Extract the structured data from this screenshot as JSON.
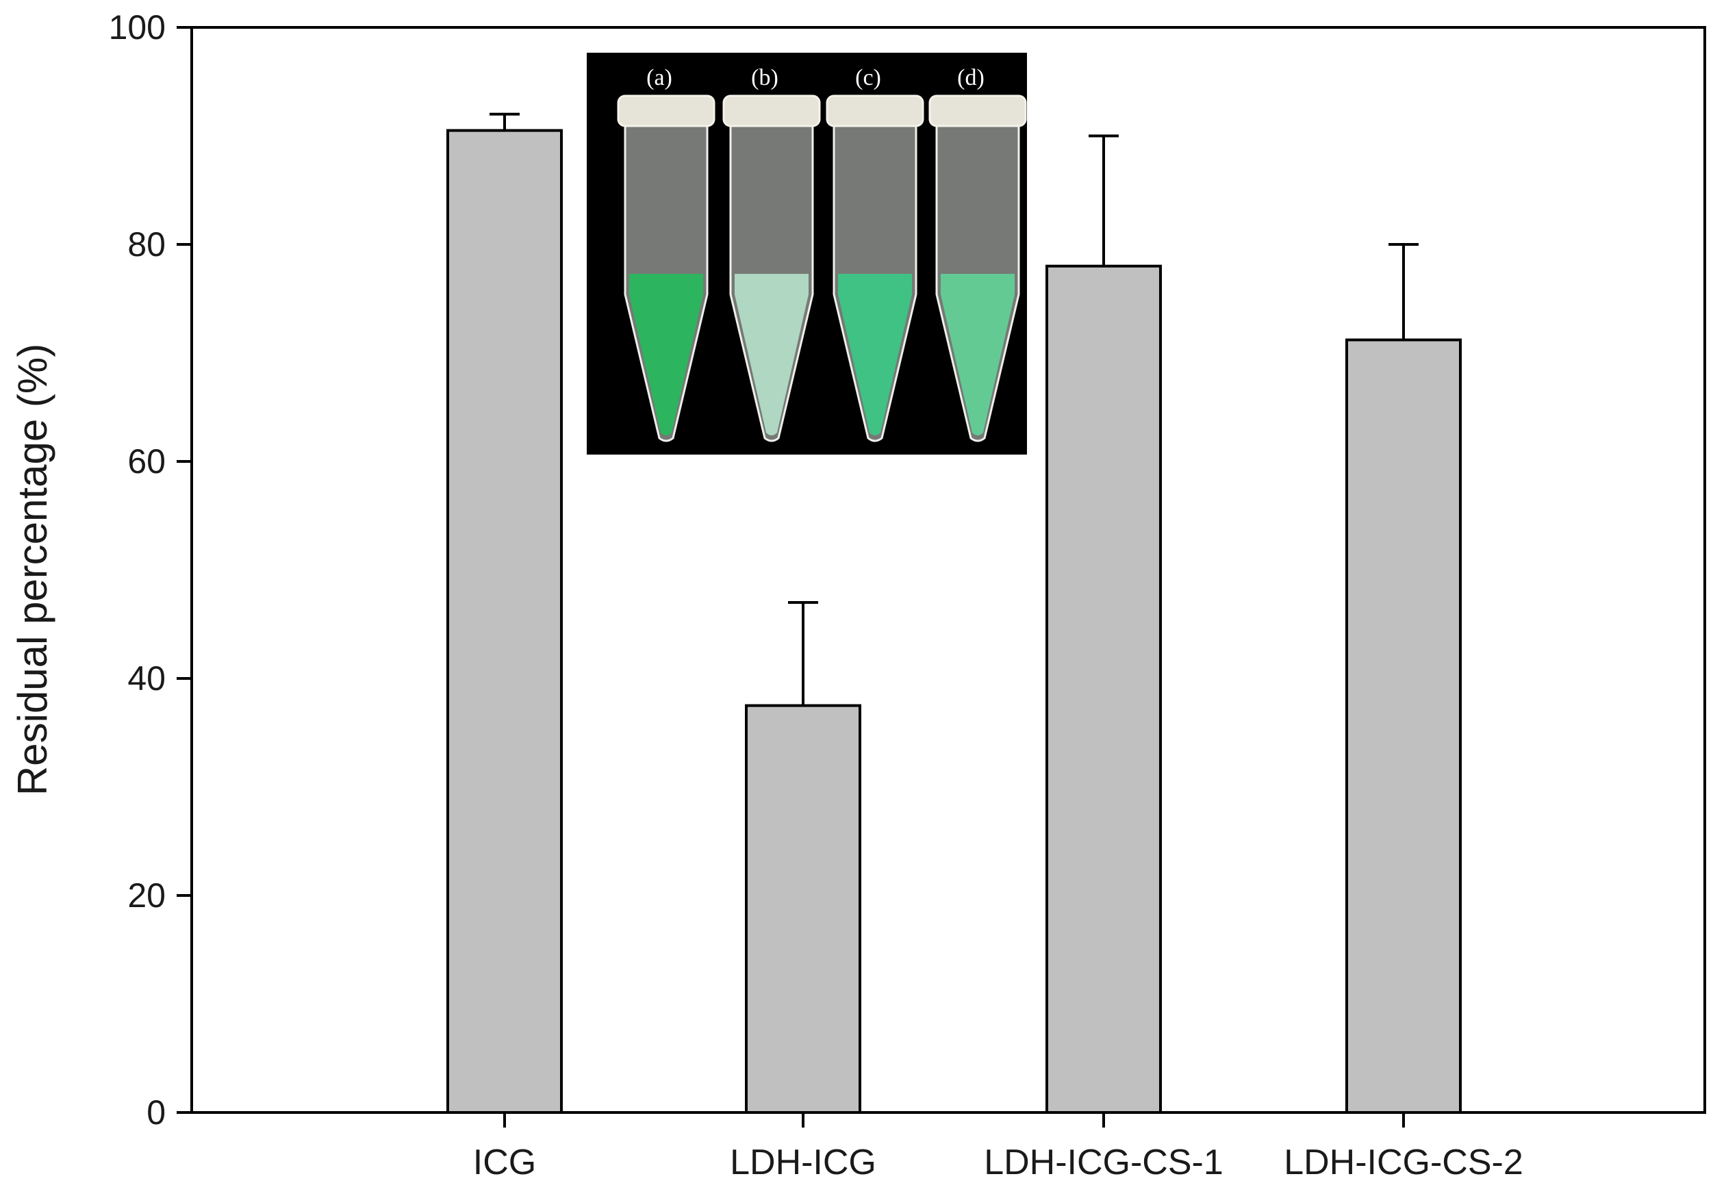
{
  "chart_data": {
    "type": "bar",
    "categories": [
      "ICG",
      "LDH-ICG",
      "LDH-ICG-CS-1",
      "LDH-ICG-CS-2"
    ],
    "values": [
      90.5,
      37.5,
      78.0,
      71.2
    ],
    "errors": [
      1.5,
      9.5,
      12.0,
      8.8
    ],
    "title": "",
    "xlabel": "",
    "ylabel": "Residual percentage (%)",
    "ylim": [
      0,
      100
    ],
    "yticks": [
      0,
      20,
      40,
      60,
      80,
      100
    ],
    "grid": false,
    "bar_color": "#c0c0c0",
    "edge_color": "#000000"
  },
  "inset": {
    "tube_labels": [
      "(a)",
      "(b)",
      "(c)",
      "(d)"
    ],
    "background": "#000000",
    "liquid_colors": [
      "#1fbf5a",
      "#b9e8cf",
      "#35cf86",
      "#5fd89a"
    ]
  }
}
